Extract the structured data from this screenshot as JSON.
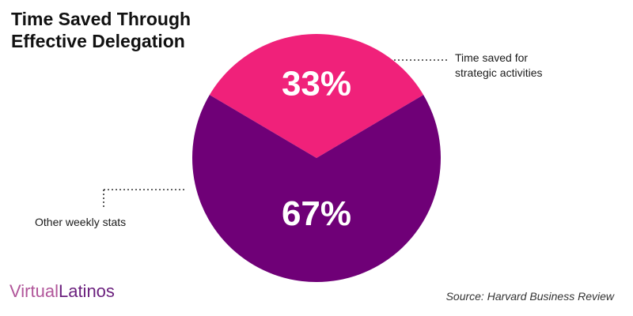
{
  "header": {
    "title_line1": "Time Saved Through",
    "title_line2": "Effective Delegation"
  },
  "chart_data": {
    "type": "pie",
    "slices": [
      {
        "label": "Time saved for strategic activities",
        "value": 33,
        "display": "33%",
        "color": "#f0217a"
      },
      {
        "label": "Other weekly stats",
        "value": 67,
        "display": "67%",
        "color": "#6f0077"
      }
    ]
  },
  "labels": {
    "right_line1": "Time saved for",
    "right_line2": "strategic activities",
    "left": "Other weekly stats"
  },
  "brand": {
    "part1": "Virtual",
    "part2": "Latinos"
  },
  "footer": {
    "source": "Source: Harvard Business Review"
  }
}
